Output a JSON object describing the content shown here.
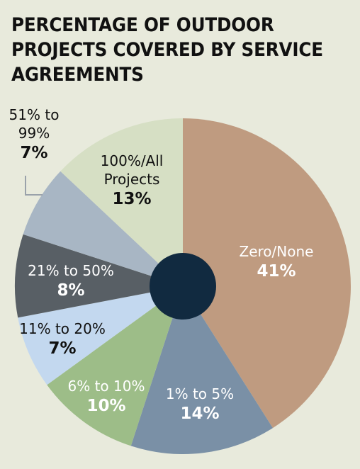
{
  "chart_data": {
    "type": "pie",
    "title": "PERCENTAGE OF OUTDOOR PROJECTS COVERED BY SERVICE AGREEMENTS",
    "slices": [
      {
        "label": "Zero/None",
        "value": 41,
        "value_label": "41%",
        "color": "#bf9b80",
        "text_color": "#ffffff"
      },
      {
        "label": "1% to 5%",
        "value": 14,
        "value_label": "14%",
        "color": "#7a90a6",
        "text_color": "#ffffff"
      },
      {
        "label": "6% to 10%",
        "value": 10,
        "value_label": "10%",
        "color": "#9dbd88",
        "text_color": "#ffffff"
      },
      {
        "label": "11% to 20%",
        "value": 7,
        "value_label": "7%",
        "color": "#c3d8ef",
        "text_color": "#111111"
      },
      {
        "label": "21% to 50%",
        "value": 8,
        "value_label": "8%",
        "color": "#585f65",
        "text_color": "#ffffff"
      },
      {
        "label": "51% to 99%",
        "value": 7,
        "value_label": "7%",
        "color": "#a8b6c4",
        "text_color": "#111111"
      },
      {
        "label": "100%/All Projects",
        "value": 13,
        "value_label": "13%",
        "color": "#d6dfc4",
        "text_color": "#111111"
      }
    ],
    "center_hole_color": "#112a40"
  }
}
